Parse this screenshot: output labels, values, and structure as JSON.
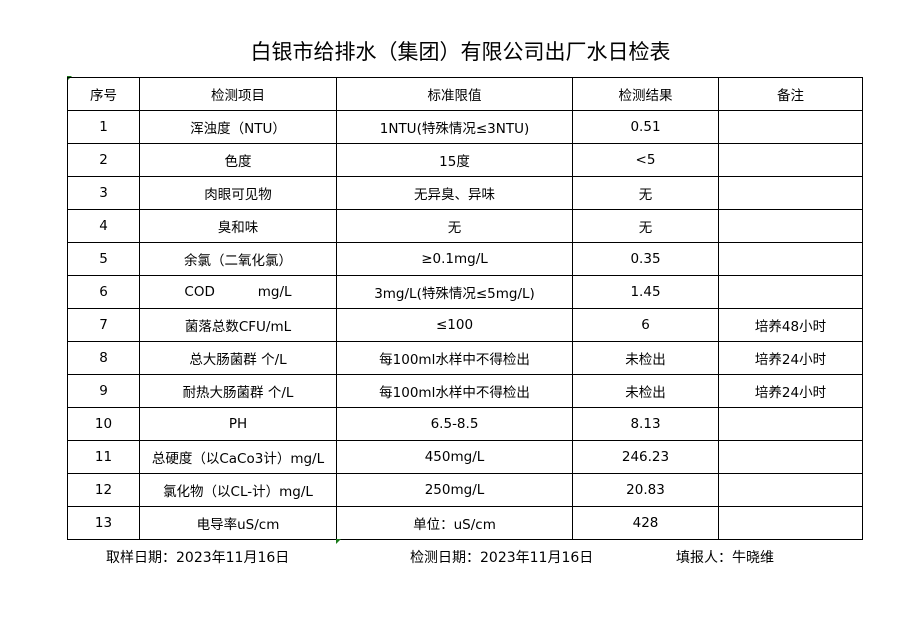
{
  "title": "白银市给排水（集团）有限公司出厂水日检表",
  "headers": [
    "序号",
    "检测项目",
    "标准限值",
    "检测结果",
    "备注"
  ],
  "rows": [
    [
      "1",
      "浑浊度（NTU）",
      "1NTU(特殊情况≤3NTU)",
      "0.51",
      ""
    ],
    [
      "2",
      "色度",
      "15度",
      "<5",
      ""
    ],
    [
      "3",
      "肉眼可见物",
      "无异臭、异味",
      "无",
      ""
    ],
    [
      "4",
      "臭和味",
      "无",
      "无",
      ""
    ],
    [
      "5",
      "余氯（二氧化氯）",
      "≥0.1mg/L",
      "0.35",
      ""
    ],
    [
      "6",
      "COD          mg/L",
      "3mg/L(特殊情况≤5mg/L)",
      "1.45",
      ""
    ],
    [
      "7",
      "菌落总数CFU/mL",
      "≤100",
      "6",
      "培养48小时"
    ],
    [
      "8",
      "总大肠菌群 个/L",
      "每100ml水样中不得检出",
      "未检出",
      "培养24小时"
    ],
    [
      "9",
      "耐热大肠菌群 个/L",
      "每100ml水样中不得检出",
      "未检出",
      "培养24小时"
    ],
    [
      "10",
      "PH",
      "6.5-8.5",
      "8.13",
      ""
    ],
    [
      "11",
      "总硬度（以CaCo3计）mg/L",
      "450mg/L",
      "246.23",
      ""
    ],
    [
      "12",
      "氯化物（以CL-计）mg/L",
      "250mg/L",
      "20.83",
      ""
    ],
    [
      "13",
      "电导率uS/cm",
      "单位：uS/cm",
      "428",
      ""
    ]
  ],
  "footer": {
    "sample_date": "取样日期：2023年11月16日",
    "test_date": "检测日期：2023年11月16日",
    "reporter": "填报人：牛晓维"
  }
}
